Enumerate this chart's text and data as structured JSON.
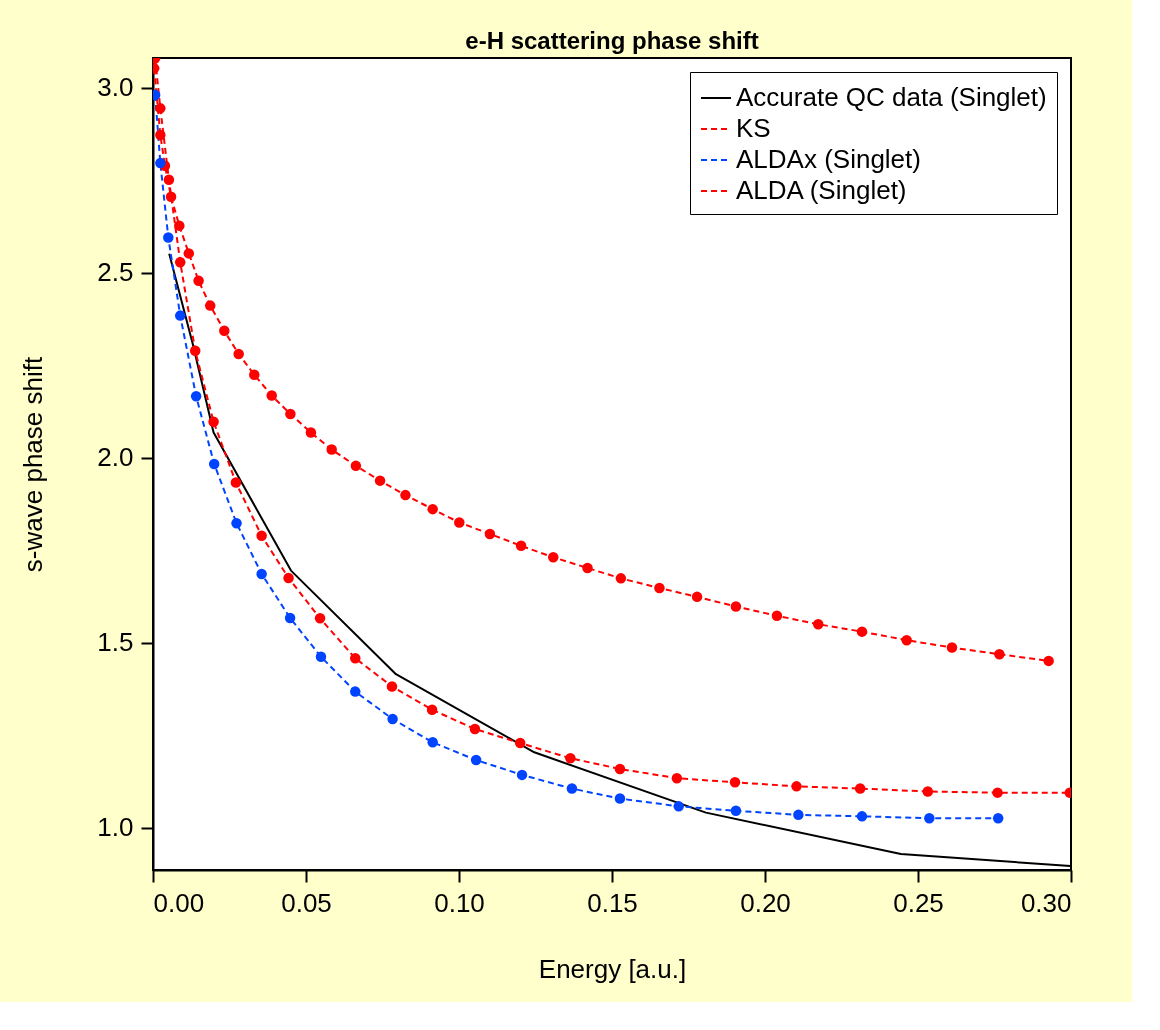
{
  "chart_data": {
    "type": "line",
    "title": "e-H scattering phase shift",
    "xlabel": "Energy [a.u.]",
    "ylabel": "s-wave phase shift",
    "xlim": [
      0,
      0.3
    ],
    "ylim": [
      0.886,
      3.08
    ],
    "xticks": [
      {
        "value": 0,
        "label": "0.00"
      },
      {
        "value": 0.05,
        "label": "0.05"
      },
      {
        "value": 0.1,
        "label": "0.10"
      },
      {
        "value": 0.15,
        "label": "0.15"
      },
      {
        "value": 0.2,
        "label": "0.20"
      },
      {
        "value": 0.25,
        "label": "0.25"
      },
      {
        "value": 0.3,
        "label": "0.30"
      }
    ],
    "yticks": [
      {
        "value": 1,
        "label": "1.0"
      },
      {
        "value": 1.5,
        "label": "1.5"
      },
      {
        "value": 2,
        "label": "2.0"
      },
      {
        "value": 2.5,
        "label": "2.5"
      },
      {
        "value": 3,
        "label": "3.0"
      }
    ],
    "grid": false,
    "legend": "top right",
    "series": [
      {
        "name": "Accurate QC data (Singlet)",
        "color": "#000000",
        "line_style": "solid",
        "marker": "none",
        "x": [
          0.0053,
          0.013,
          0.0198,
          0.0451,
          0.0794,
          0.1246,
          0.1807,
          0.2444,
          0.2998
        ],
        "values": [
          2.551,
          2.307,
          2.068,
          1.695,
          1.415,
          1.204,
          1.041,
          0.929,
          0.897
        ]
      },
      {
        "name": "KS",
        "color": "#ff0000",
        "line_style": "dashed",
        "marker": "circle",
        "x": [
          0.0004,
          0.0024,
          0.0039,
          0.0059,
          0.0086,
          0.0117,
          0.0149,
          0.0187,
          0.0233,
          0.028,
          0.0331,
          0.0388,
          0.0449,
          0.0516,
          0.0584,
          0.0663,
          0.0742,
          0.0825,
          0.0914,
          0.1001,
          0.1101,
          0.1203,
          0.1308,
          0.142,
          0.1529,
          0.1655,
          0.1778,
          0.1905,
          0.2039,
          0.2174,
          0.2317,
          0.2463,
          0.2611,
          0.2766,
          0.2927
        ],
        "values": [
          3.052,
          2.872,
          2.789,
          2.705,
          2.627,
          2.552,
          2.478,
          2.411,
          2.343,
          2.28,
          2.224,
          2.168,
          2.118,
          2.068,
          2.022,
          1.978,
          1.938,
          1.899,
          1.861,
          1.825,
          1.794,
          1.762,
          1.731,
          1.702,
          1.674,
          1.648,
          1.624,
          1.598,
          1.573,
          1.55,
          1.53,
          1.507,
          1.487,
          1.469,
          1.451
        ]
      },
      {
        "name": "ALDAx (Singlet)",
        "color": "#0044ff",
        "line_style": "dashed",
        "marker": "circle",
        "x": [
          0.0007,
          0.0024,
          0.005,
          0.0089,
          0.0141,
          0.02,
          0.0273,
          0.0355,
          0.0448,
          0.0549,
          0.0661,
          0.0783,
          0.0914,
          0.1056,
          0.1206,
          0.1369,
          0.1526,
          0.1718,
          0.1905,
          0.2109,
          0.2317,
          0.2537,
          0.2762
        ],
        "values": [
          2.98,
          2.796,
          2.595,
          2.384,
          2.166,
          1.983,
          1.823,
          1.686,
          1.567,
          1.462,
          1.368,
          1.294,
          1.231,
          1.183,
          1.143,
          1.106,
          1.079,
          1.058,
          1.046,
          1.035,
          1.031,
          1.026,
          1.026
        ]
      },
      {
        "name": "ALDA   (Singlet)",
        "color": "#ff0000",
        "line_style": "dashed",
        "marker": "circle",
        "x": [
          0.0007,
          0.0024,
          0.0052,
          0.0089,
          0.0138,
          0.0198,
          0.0271,
          0.0355,
          0.0443,
          0.0546,
          0.0661,
          0.0781,
          0.0912,
          0.1052,
          0.12,
          0.1364,
          0.1526,
          0.1712,
          0.1902,
          0.2103,
          0.2311,
          0.2532,
          0.276,
          0.2996
        ],
        "values": [
          3.079,
          2.944,
          2.751,
          2.528,
          2.289,
          2.097,
          1.933,
          1.789,
          1.675,
          1.566,
          1.458,
          1.382,
          1.319,
          1.267,
          1.229,
          1.188,
          1.159,
          1.134,
          1.123,
          1.112,
          1.106,
          1.098,
          1.095,
          1.095
        ]
      }
    ]
  }
}
